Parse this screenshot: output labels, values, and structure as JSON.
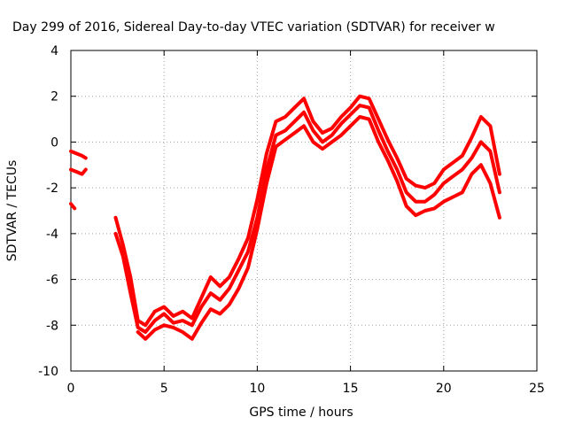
{
  "chart_data": {
    "type": "line",
    "title": "Day 299 of 2016, Sidereal Day-to-day VTEC variation (SDTVAR) for receiver w",
    "xlabel": "GPS time / hours",
    "ylabel": "SDTVAR / TECUs",
    "xlim": [
      0,
      25
    ],
    "ylim": [
      -10,
      4
    ],
    "xticks": [
      0,
      5,
      10,
      15,
      20,
      25
    ],
    "yticks": [
      -10,
      -8,
      -6,
      -4,
      -2,
      0,
      2,
      4
    ],
    "grid": true,
    "marker": "plus",
    "color": "#ff0000",
    "series": [
      {
        "x": [
          0,
          0.3,
          0.6,
          0.8
        ],
        "y": [
          -0.4,
          -0.5,
          -0.6,
          -0.7
        ]
      },
      {
        "x": [
          0,
          0.3,
          0.6,
          0.8
        ],
        "y": [
          -1.2,
          -1.3,
          -1.4,
          -1.2
        ]
      },
      {
        "x": [
          0,
          0.2
        ],
        "y": [
          -2.7,
          -2.9
        ]
      },
      {
        "x": [
          2.4,
          2.8,
          3.2,
          3.6,
          4.0,
          4.5,
          5.0,
          5.5,
          6.0,
          6.5,
          7.0,
          7.5,
          8.0,
          8.5,
          9.0,
          9.5,
          10.0,
          10.5,
          11.0,
          11.5,
          12.0,
          12.5,
          13.0,
          13.5,
          14.0,
          14.5,
          15.0,
          15.5,
          16.0,
          16.5,
          17.0,
          17.5,
          18.0,
          18.5,
          19.0,
          19.5,
          20.0,
          20.5,
          21.0,
          21.5,
          22.0,
          22.5,
          23.0
        ],
        "y": [
          -3.3,
          -4.5,
          -5.9,
          -7.8,
          -8.0,
          -7.4,
          -7.2,
          -7.6,
          -7.4,
          -7.7,
          -6.8,
          -5.9,
          -6.3,
          -5.9,
          -5.1,
          -4.2,
          -2.5,
          -0.5,
          0.9,
          1.1,
          1.5,
          1.9,
          0.9,
          0.4,
          0.6,
          1.1,
          1.5,
          2.0,
          1.9,
          1.0,
          0.1,
          -0.7,
          -1.6,
          -1.9,
          -2.0,
          -1.8,
          -1.2,
          -0.9,
          -0.6,
          0.2,
          1.1,
          0.7,
          -1.4
        ]
      },
      {
        "x": [
          2.4,
          2.8,
          3.2,
          3.6,
          4.0,
          4.5,
          5.0,
          5.5,
          6.0,
          6.5,
          7.0,
          7.5,
          8.0,
          8.5,
          9.0,
          9.5,
          10.0,
          10.5,
          11.0,
          11.5,
          12.0,
          12.5,
          13.0,
          13.5,
          14.0,
          14.5,
          15.0,
          15.5,
          16.0,
          16.5,
          17.0,
          17.5,
          18.0,
          18.5,
          19.0,
          19.5,
          20.0,
          20.5,
          21.0,
          21.5,
          22.0,
          22.5,
          23.0
        ],
        "y": [
          -4.0,
          -5.0,
          -6.6,
          -8.1,
          -8.3,
          -7.8,
          -7.5,
          -7.9,
          -7.8,
          -8.0,
          -7.2,
          -6.6,
          -6.9,
          -6.4,
          -5.6,
          -4.8,
          -3.3,
          -1.2,
          0.3,
          0.5,
          0.9,
          1.3,
          0.5,
          0.0,
          0.3,
          0.8,
          1.2,
          1.6,
          1.5,
          0.5,
          -0.4,
          -1.2,
          -2.2,
          -2.6,
          -2.6,
          -2.3,
          -1.8,
          -1.5,
          -1.2,
          -0.7,
          0.0,
          -0.4,
          -2.2
        ]
      },
      {
        "x": [
          3.6,
          4.0,
          4.5,
          5.0,
          5.5,
          6.0,
          6.5,
          7.0,
          7.5,
          8.0,
          8.5,
          9.0,
          9.5,
          10.0,
          10.5,
          11.0,
          11.5,
          12.0,
          12.5,
          13.0,
          13.5,
          14.0,
          14.5,
          15.0,
          15.5,
          16.0,
          16.5,
          17.0,
          17.5,
          18.0,
          18.5,
          19.0,
          19.5,
          20.0,
          20.5,
          21.0,
          21.5,
          22.0,
          22.5,
          23.0
        ],
        "y": [
          -8.3,
          -8.6,
          -8.2,
          -8.0,
          -8.1,
          -8.3,
          -8.6,
          -7.9,
          -7.3,
          -7.5,
          -7.1,
          -6.4,
          -5.5,
          -3.8,
          -1.8,
          -0.2,
          0.1,
          0.4,
          0.7,
          0.0,
          -0.3,
          0.0,
          0.3,
          0.7,
          1.1,
          1.0,
          0.0,
          -0.8,
          -1.7,
          -2.8,
          -3.2,
          -3.0,
          -2.9,
          -2.6,
          -2.4,
          -2.2,
          -1.4,
          -1.0,
          -1.8,
          -3.3
        ]
      }
    ]
  }
}
